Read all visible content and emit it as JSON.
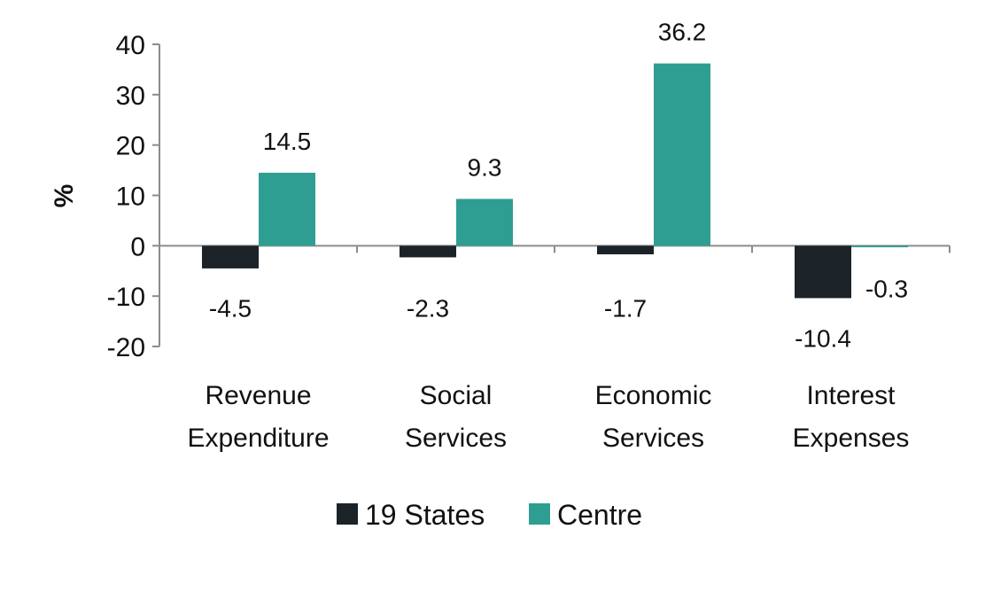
{
  "chart_data": {
    "type": "bar",
    "title": "",
    "xlabel": "",
    "ylabel": "%",
    "ylim": [
      -20,
      40
    ],
    "yticks": [
      40,
      30,
      20,
      10,
      0,
      -10,
      -20
    ],
    "categories": [
      [
        "Revenue",
        "Expenditure"
      ],
      [
        "Social",
        "Services"
      ],
      [
        "Economic",
        "Services"
      ],
      [
        "Interest",
        "Expenses"
      ]
    ],
    "series": [
      {
        "name": "19 States",
        "color": "#1b2329",
        "values": [
          -4.5,
          -2.3,
          -1.7,
          -10.4
        ],
        "labels": [
          "-4.5",
          "-2.3",
          "-1.7",
          "-10.4"
        ]
      },
      {
        "name": "Centre",
        "color": "#2e9e92",
        "values": [
          14.5,
          9.3,
          36.2,
          -0.3
        ],
        "labels": [
          "14.5",
          "9.3",
          "36.2",
          "-0.3"
        ]
      }
    ],
    "legend_position": "bottom",
    "grid": false
  }
}
